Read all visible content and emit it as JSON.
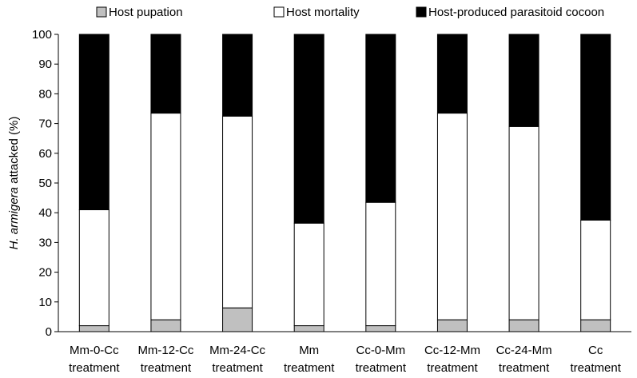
{
  "chart_data": {
    "type": "bar",
    "stacked": true,
    "percent": true,
    "categories": [
      [
        "Mm-0-Cc",
        "treatment"
      ],
      [
        "Mm-12-Cc",
        "treatment"
      ],
      [
        "Mm-24-Cc",
        "treatment"
      ],
      [
        "Mm",
        "treatment"
      ],
      [
        "Cc-0-Mm",
        "treatment"
      ],
      [
        "Cc-12-Mm",
        "treatment"
      ],
      [
        "Cc-24-Mm",
        "treatment"
      ],
      [
        "Cc",
        "treatment"
      ]
    ],
    "series": [
      {
        "name": "Host pupation",
        "color": "#c0c0c0",
        "values": [
          2,
          4,
          8,
          2,
          2,
          4,
          4,
          4
        ]
      },
      {
        "name": "Host mortality",
        "color": "#ffffff",
        "values": [
          39,
          69.5,
          64.5,
          34.5,
          41.5,
          69.5,
          65,
          33.5
        ]
      },
      {
        "name": "Host-produced parasitoid cocoon",
        "color": "#000000",
        "values": [
          59,
          26.5,
          27.5,
          63.5,
          56.5,
          26.5,
          31,
          62.5
        ]
      }
    ],
    "ylabel_italic": "H. armigera",
    "ylabel_rest": " attacked (%)",
    "ylim": [
      0,
      100
    ],
    "yticks": [
      0,
      10,
      20,
      30,
      40,
      50,
      60,
      70,
      80,
      90,
      100
    ],
    "grid": false,
    "legend_position": "top"
  }
}
